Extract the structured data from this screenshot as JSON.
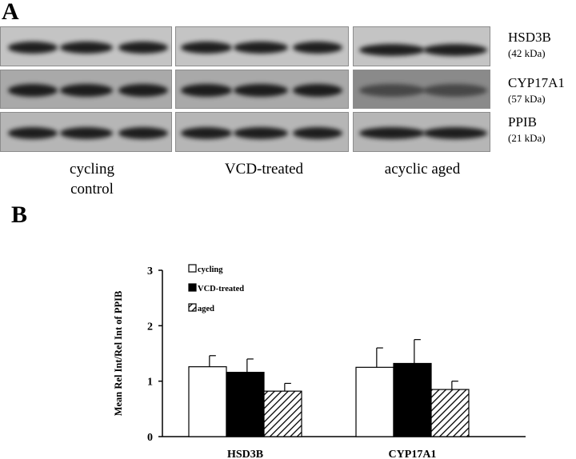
{
  "panel_a": {
    "letter": "A",
    "proteins": [
      {
        "name": "HSD3B",
        "kda": "(42 kDa)"
      },
      {
        "name": "CYP17A1",
        "kda": "(57 kDa)"
      },
      {
        "name": "PPIB",
        "kda": "(21 kDa)"
      }
    ],
    "groups": [
      {
        "line1": "cycling",
        "line2": "control"
      },
      {
        "line1": "VCD-treated",
        "line2": ""
      },
      {
        "line1": "acyclic aged",
        "line2": ""
      }
    ]
  },
  "panel_b": {
    "letter": "B"
  },
  "chart_data": {
    "type": "bar",
    "categories": [
      "HSD3B",
      "CYP17A1"
    ],
    "series": [
      {
        "name": "cycling",
        "values": [
          1.26,
          1.25
        ],
        "errors": [
          0.2,
          0.35
        ],
        "fill": "white"
      },
      {
        "name": "VCD-treated",
        "values": [
          1.16,
          1.32
        ],
        "errors": [
          0.24,
          0.43
        ],
        "fill": "black"
      },
      {
        "name": "aged",
        "values": [
          0.82,
          0.85
        ],
        "errors": [
          0.14,
          0.15
        ],
        "fill": "hatched"
      }
    ],
    "ylabel": "Mean Rel Int/Rel Int of PPIB",
    "xlabel": "",
    "ylim": [
      0,
      3
    ],
    "yticks": [
      "0",
      "1",
      "2",
      "3"
    ],
    "legend_position": "top-left",
    "grid": false
  }
}
